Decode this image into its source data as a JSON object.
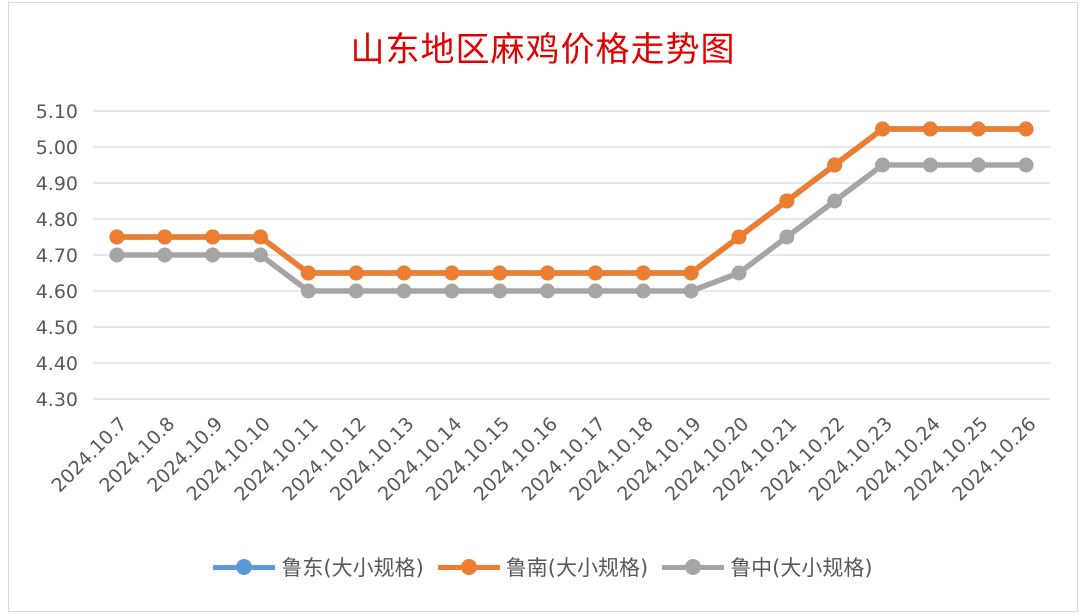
{
  "chart_data": {
    "type": "line",
    "title": "山东地区麻鸡价格走势图",
    "categories": [
      "2024.10.7",
      "2024.10.8",
      "2024.10.9",
      "2024.10.10",
      "2024.10.11",
      "2024.10.12",
      "2024.10.13",
      "2024.10.14",
      "2024.10.15",
      "2024.10.16",
      "2024.10.17",
      "2024.10.18",
      "2024.10.19",
      "2024.10.20",
      "2024.10.21",
      "2024.10.22",
      "2024.10.23",
      "2024.10.24",
      "2024.10.25",
      "2024.10.26"
    ],
    "series": [
      {
        "name": "鲁东(大小规格)",
        "color": "#5b9bd5",
        "values": [
          4.75,
          4.75,
          4.75,
          4.75,
          4.65,
          4.65,
          4.65,
          4.65,
          4.65,
          4.65,
          4.65,
          4.65,
          4.65,
          4.75,
          4.85,
          4.95,
          5.05,
          5.05,
          5.05,
          5.05
        ]
      },
      {
        "name": "鲁南(大小规格)",
        "color": "#ed7d31",
        "values": [
          4.75,
          4.75,
          4.75,
          4.75,
          4.65,
          4.65,
          4.65,
          4.65,
          4.65,
          4.65,
          4.65,
          4.65,
          4.65,
          4.75,
          4.85,
          4.95,
          5.05,
          5.05,
          5.05,
          5.05
        ]
      },
      {
        "name": "鲁中(大小规格)",
        "color": "#a5a5a5",
        "values": [
          4.7,
          4.7,
          4.7,
          4.7,
          4.6,
          4.6,
          4.6,
          4.6,
          4.6,
          4.6,
          4.6,
          4.6,
          4.6,
          4.65,
          4.75,
          4.85,
          4.95,
          4.95,
          4.95,
          4.95
        ]
      }
    ],
    "yticks": [
      "4.30",
      "4.40",
      "4.50",
      "4.60",
      "4.70",
      "4.80",
      "4.90",
      "5.00",
      "5.10"
    ],
    "ylim": [
      4.3,
      5.1
    ],
    "grid": true,
    "legend_position": "bottom",
    "xlabel": "",
    "ylabel": ""
  }
}
